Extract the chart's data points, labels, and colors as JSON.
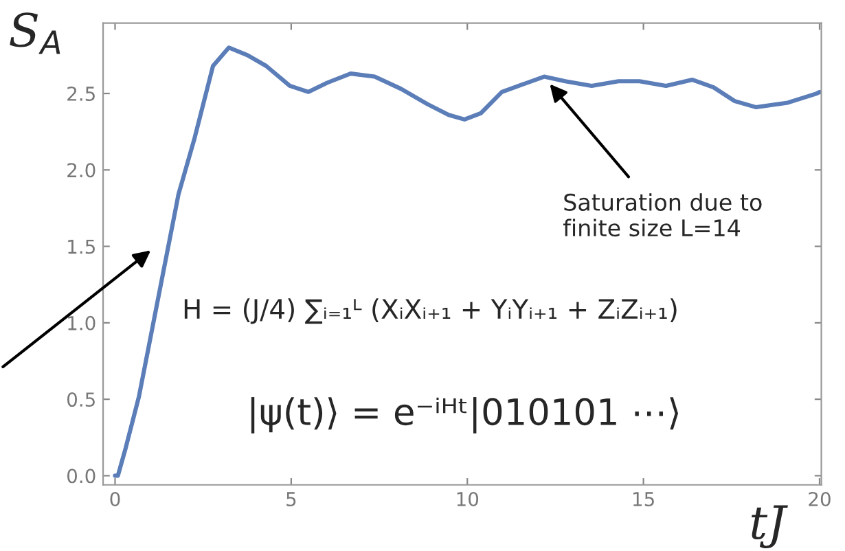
{
  "chart_data": {
    "type": "line",
    "xlabel": "tJ",
    "ylabel": "S$_{A}$",
    "x": [
      0,
      0.08,
      0.3,
      0.68,
      1.35,
      1.8,
      2.26,
      2.78,
      3.23,
      3.76,
      4.29,
      4.96,
      5.49,
      6.02,
      6.69,
      7.37,
      8.12,
      8.87,
      9.47,
      9.92,
      10.38,
      10.98,
      11.58,
      12.18,
      12.78,
      13.53,
      14.29,
      14.89,
      15.64,
      16.39,
      16.99,
      17.59,
      18.2,
      19.1,
      19.92,
      20.0
    ],
    "series": [
      {
        "color": "#5b7db8",
        "values": [
          0.0,
          0.0,
          0.18,
          0.52,
          1.31,
          1.84,
          2.21,
          2.68,
          2.8,
          2.75,
          2.68,
          2.55,
          2.51,
          2.57,
          2.63,
          2.61,
          2.53,
          2.43,
          2.36,
          2.33,
          2.37,
          2.51,
          2.56,
          2.61,
          2.58,
          2.55,
          2.58,
          2.58,
          2.55,
          2.59,
          2.54,
          2.45,
          2.41,
          2.44,
          2.5,
          2.51
        ]
      }
    ],
    "xlim": [
      -0.34,
      20.05
    ],
    "ylim": [
      -0.06,
      2.96
    ],
    "xticks": [
      0,
      5,
      10,
      15,
      20
    ],
    "yticks": [
      {
        "value": 0,
        "label": "0.0"
      },
      {
        "value": 0.5,
        "label": "0.5"
      },
      {
        "value": 1.0,
        "label": "1.0"
      },
      {
        "value": 1.5,
        "label": "1.5"
      },
      {
        "value": 2.0,
        "label": "2.0"
      },
      {
        "value": 2.5,
        "label": "2.5"
      }
    ],
    "grid": false,
    "marker": "none",
    "line_style": "solid",
    "annotations": [
      {
        "text": "Saturation due to\nfinite size L=14",
        "x": 12.2,
        "y": 2.6
      },
      "H = (J/4) ∑ᵢ₌₁ᴸ (XᵢXᵢ₊₁ + YᵢYᵢ₊₁ + ZᵢZᵢ₊₁)",
      "|ψ(t)⟩ = e⁻ⁱᴴᵗ|010101 ⋯⟩"
    ]
  }
}
